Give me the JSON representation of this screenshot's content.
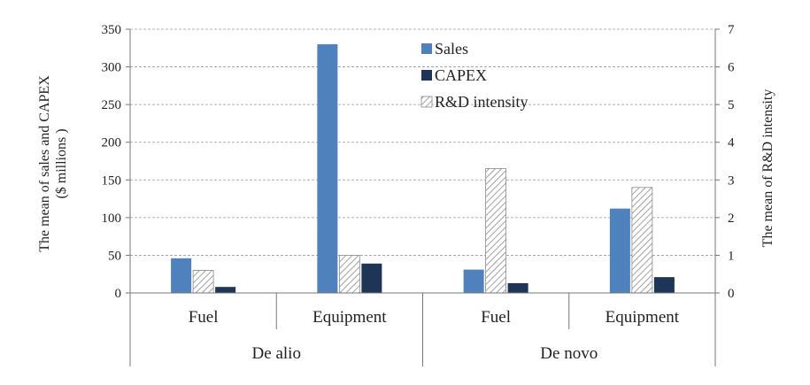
{
  "chart_data": {
    "type": "bar",
    "groups": [
      "De alio",
      "De novo"
    ],
    "categories": [
      "Fuel",
      "Equipment",
      "Fuel",
      "Equipment"
    ],
    "series": [
      {
        "name": "Sales",
        "axis": "left",
        "values": [
          46,
          330,
          31,
          112
        ],
        "color": "#4f81bd"
      },
      {
        "name": "R&D intensity",
        "axis": "right",
        "values": [
          0.6,
          1.0,
          3.3,
          2.8
        ],
        "color": "#ffffff",
        "pattern": "diagonal-hatch"
      },
      {
        "name": "CAPEX",
        "axis": "right_of_pair",
        "values": [
          8,
          39,
          13,
          21
        ],
        "color": "#1f3557"
      }
    ],
    "y_left": {
      "label_line1": "The mean of  sales and  CAPEX",
      "label_line2": "($ millions  )",
      "ylim": [
        0,
        350
      ],
      "ticks": [
        0,
        50,
        100,
        150,
        200,
        250,
        300,
        350
      ]
    },
    "y_right": {
      "label": "The mean of R&D intensity",
      "ylim": [
        0,
        7
      ],
      "ticks": [
        0,
        1,
        2,
        3,
        4,
        5,
        6,
        7
      ]
    },
    "legend": {
      "placement": "top-center",
      "entries": [
        "Sales",
        "CAPEX",
        "R&D intensity"
      ]
    },
    "grid": true
  }
}
